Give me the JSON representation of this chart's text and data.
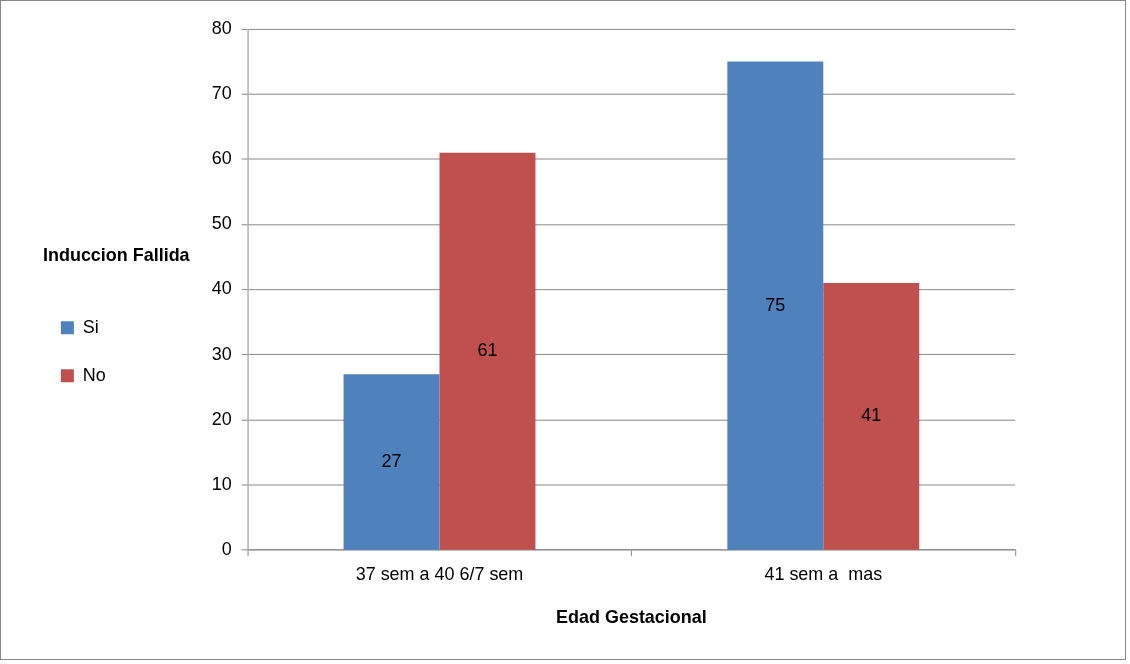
{
  "chart_data": {
    "type": "bar",
    "xlabel": "Edad Gestacional",
    "legend_title": "Induccion Fallida",
    "categories": [
      "37 sem a 40 6/7 sem",
      "41 sem a  mas"
    ],
    "series": [
      {
        "name": "Si",
        "color": "#4f81bd",
        "values": [
          27,
          75
        ]
      },
      {
        "name": "No",
        "color": "#c0504d",
        "values": [
          61,
          41
        ]
      }
    ],
    "ylim": [
      0,
      80
    ],
    "yticks": [
      0,
      10,
      20,
      30,
      40,
      50,
      60,
      70,
      80
    ],
    "grid": "y",
    "legend": "left",
    "data_labels": true
  }
}
